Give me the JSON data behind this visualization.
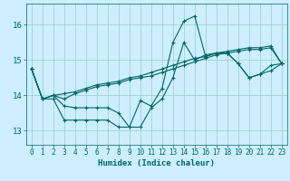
{
  "xlabel": "Humidex (Indice chaleur)",
  "background_color": "#cceeff",
  "grid_color": "#99cccc",
  "line_color": "#006666",
  "xlim": [
    -0.5,
    23.5
  ],
  "ylim": [
    12.6,
    16.6
  ],
  "yticks": [
    13,
    14,
    15,
    16
  ],
  "xticks": [
    0,
    1,
    2,
    3,
    4,
    5,
    6,
    7,
    8,
    9,
    10,
    11,
    12,
    13,
    14,
    15,
    16,
    17,
    18,
    19,
    20,
    21,
    22,
    23
  ],
  "series": [
    [
      14.75,
      13.9,
      13.9,
      13.3,
      13.3,
      13.3,
      13.3,
      13.3,
      13.1,
      13.1,
      13.85,
      13.7,
      14.2,
      15.5,
      16.1,
      16.25,
      15.1,
      15.2,
      15.2,
      14.9,
      14.5,
      14.6,
      14.85,
      14.9
    ],
    [
      14.75,
      13.9,
      14.0,
      14.05,
      14.1,
      14.2,
      14.3,
      14.35,
      14.4,
      14.5,
      14.55,
      14.65,
      14.75,
      14.85,
      14.95,
      15.05,
      15.1,
      15.2,
      15.25,
      15.3,
      15.35,
      15.35,
      15.4,
      14.9
    ],
    [
      14.75,
      13.9,
      14.0,
      13.7,
      13.65,
      13.65,
      13.65,
      13.65,
      13.5,
      13.1,
      13.1,
      13.65,
      13.9,
      14.5,
      15.5,
      15.0,
      15.15,
      15.2,
      15.2,
      14.9,
      14.5,
      14.6,
      14.7,
      14.9
    ],
    [
      14.75,
      13.9,
      14.0,
      13.9,
      14.05,
      14.15,
      14.25,
      14.3,
      14.35,
      14.45,
      14.5,
      14.55,
      14.65,
      14.75,
      14.85,
      14.95,
      15.05,
      15.15,
      15.2,
      15.25,
      15.3,
      15.3,
      15.35,
      14.9
    ]
  ],
  "lw": 0.8,
  "marker_size": 2.5,
  "tick_fontsize": 5.5,
  "xlabel_fontsize": 6.5
}
